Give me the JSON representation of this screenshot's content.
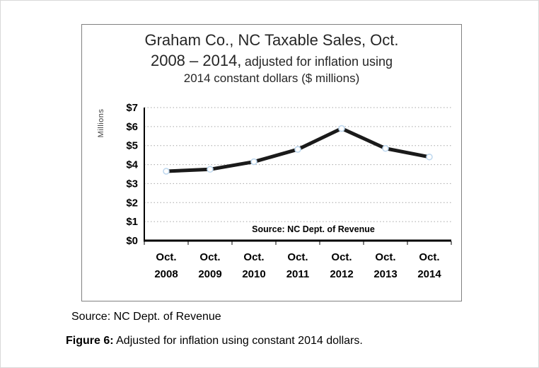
{
  "chart_data": {
    "type": "line",
    "title_line1": "Graham Co., NC Taxable Sales, Oct.",
    "title_line2a": "2008 – 2014,",
    "title_line2b": "adjusted for inflation using",
    "title_line3": "2014 constant dollars ($ millions)",
    "ylabel": "Millions",
    "ylim": [
      0,
      7
    ],
    "y_step": 1,
    "y_tick_prefix": "$",
    "y_ticks": [
      {
        "label": "$0",
        "value": 0
      },
      {
        "label": "$1",
        "value": 1
      },
      {
        "label": "$2",
        "value": 2
      },
      {
        "label": "$3",
        "value": 3
      },
      {
        "label": "$4",
        "value": 4
      },
      {
        "label": "$5",
        "value": 5
      },
      {
        "label": "$6",
        "value": 6
      },
      {
        "label": "$7",
        "value": 7
      }
    ],
    "categories": [
      {
        "line1": "Oct.",
        "line2": "2008"
      },
      {
        "line1": "Oct.",
        "line2": "2009"
      },
      {
        "line1": "Oct.",
        "line2": "2010"
      },
      {
        "line1": "Oct.",
        "line2": "2011"
      },
      {
        "line1": "Oct.",
        "line2": "2012"
      },
      {
        "line1": "Oct.",
        "line2": "2013"
      },
      {
        "line1": "Oct.",
        "line2": "2014"
      }
    ],
    "values": [
      3.65,
      3.75,
      4.15,
      4.8,
      5.9,
      4.85,
      4.4
    ],
    "annotation": "Source: NC Dept. of Revenue",
    "grid": "horizontal-dotted",
    "legend": "none",
    "line_color": "#1a1a1a",
    "marker_fill": "#ffffff",
    "marker_stroke": "#bdd7ee"
  },
  "caption": {
    "source": "Source: NC Dept. of Revenue",
    "figure_label": "Figure 6:",
    "figure_text": " Adjusted for inflation using constant 2014 dollars."
  }
}
